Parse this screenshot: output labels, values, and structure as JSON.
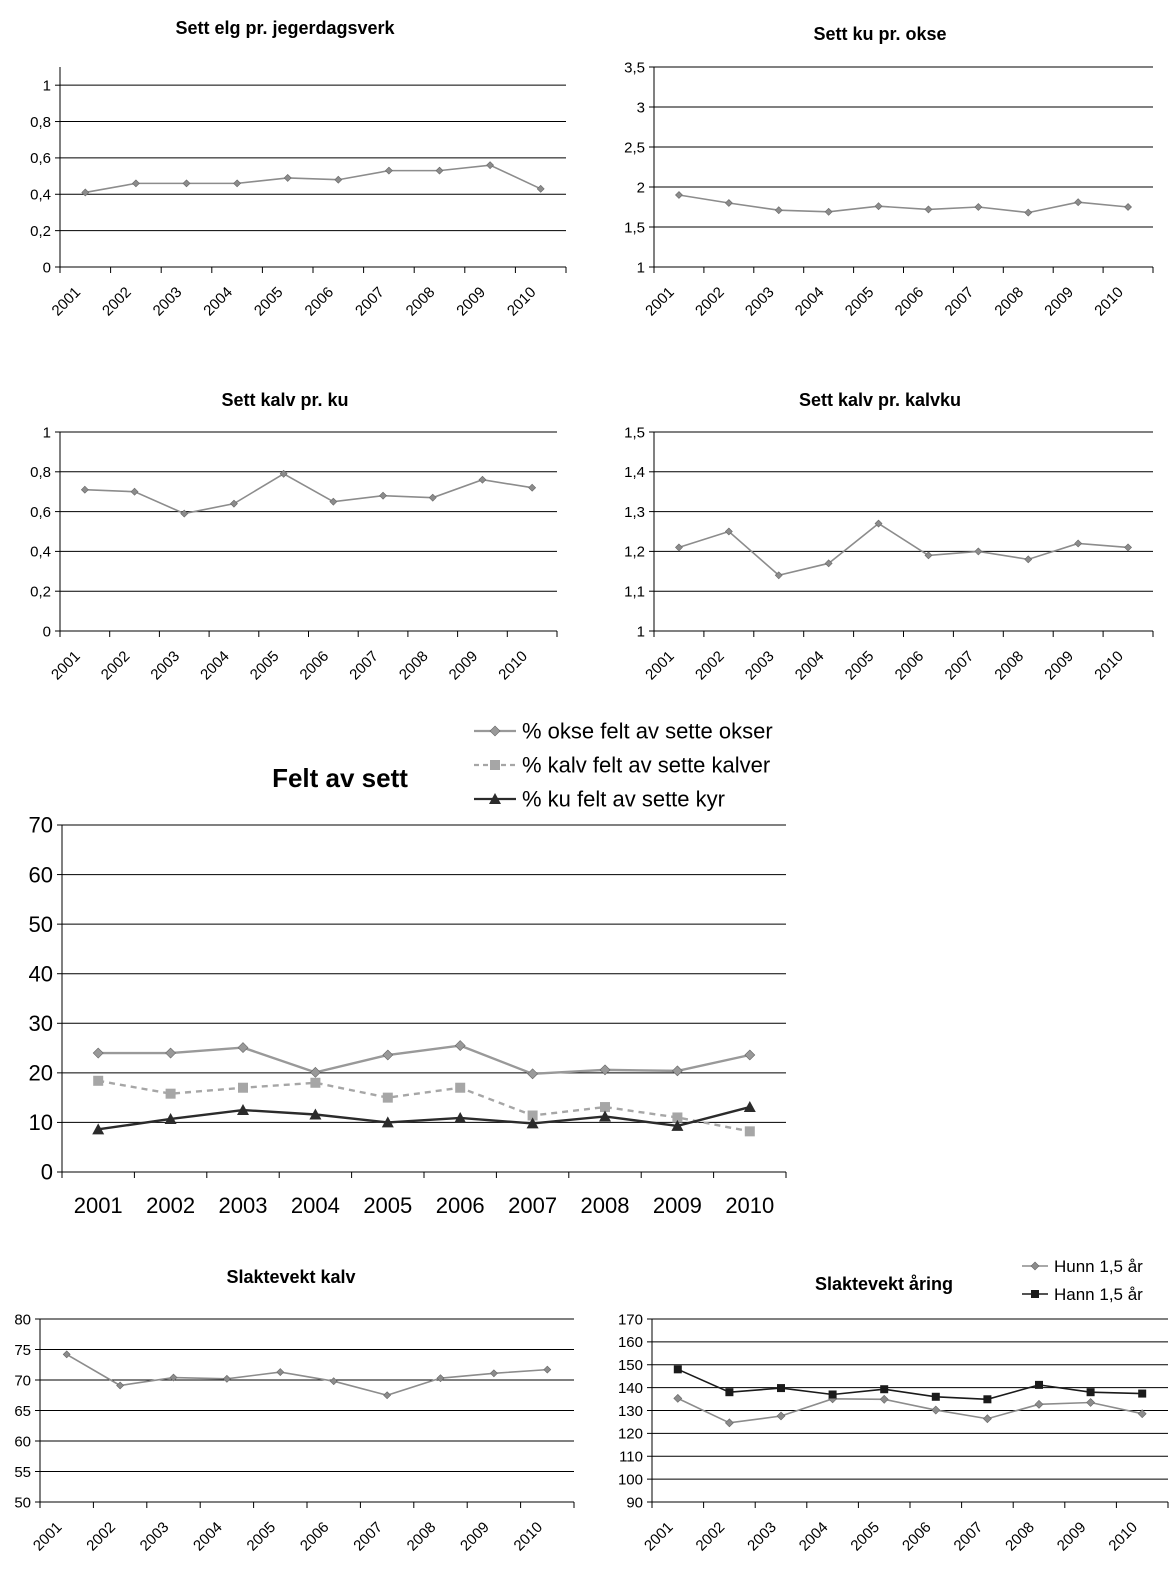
{
  "chart_data": [
    {
      "type": "line",
      "title": "Sett elg pr. jegerdagsverk",
      "categories": [
        "2001",
        "2002",
        "2003",
        "2004",
        "2005",
        "2006",
        "2007",
        "2008",
        "2009",
        "2010"
      ],
      "yticks": [
        "0",
        "0,2",
        "0,4",
        "0,6",
        "0,8",
        "1"
      ],
      "ylim": [
        0,
        1.1
      ],
      "grid": true,
      "series": [
        {
          "values": [
            0.41,
            0.46,
            0.46,
            0.46,
            0.49,
            0.48,
            0.53,
            0.53,
            0.56,
            0.43
          ],
          "color": "#8c8c8c",
          "marker": "diamond"
        }
      ]
    },
    {
      "type": "line",
      "title": "Sett ku pr. okse",
      "categories": [
        "2001",
        "2002",
        "2003",
        "2004",
        "2005",
        "2006",
        "2007",
        "2008",
        "2009",
        "2010"
      ],
      "yticks": [
        "1",
        "1,5",
        "2",
        "2,5",
        "3",
        "3,5"
      ],
      "ylim": [
        1,
        3.5
      ],
      "grid": true,
      "series": [
        {
          "values": [
            1.9,
            1.8,
            1.71,
            1.69,
            1.76,
            1.72,
            1.75,
            1.68,
            1.81,
            1.75
          ],
          "color": "#8c8c8c",
          "marker": "diamond"
        }
      ]
    },
    {
      "type": "line",
      "title": "Sett kalv pr. ku",
      "categories": [
        "2001",
        "2002",
        "2003",
        "2004",
        "2005",
        "2006",
        "2007",
        "2008",
        "2009",
        "2010"
      ],
      "yticks": [
        "0",
        "0,2",
        "0,4",
        "0,6",
        "0,8",
        "1"
      ],
      "ylim": [
        0,
        1
      ],
      "grid": true,
      "series": [
        {
          "values": [
            0.71,
            0.7,
            0.59,
            0.64,
            0.79,
            0.65,
            0.68,
            0.67,
            0.76,
            0.72
          ],
          "color": "#8c8c8c",
          "marker": "diamond"
        }
      ]
    },
    {
      "type": "line",
      "title": "Sett kalv pr. kalvku",
      "categories": [
        "2001",
        "2002",
        "2003",
        "2004",
        "2005",
        "2006",
        "2007",
        "2008",
        "2009",
        "2010"
      ],
      "yticks": [
        "1",
        "1,1",
        "1,2",
        "1,3",
        "1,4",
        "1,5"
      ],
      "ylim": [
        1,
        1.5
      ],
      "grid": true,
      "series": [
        {
          "values": [
            1.21,
            1.25,
            1.14,
            1.17,
            1.27,
            1.19,
            1.2,
            1.18,
            1.22,
            1.21
          ],
          "color": "#8c8c8c",
          "marker": "diamond"
        }
      ]
    },
    {
      "type": "line",
      "title": "Felt av sett",
      "categories": [
        "2001",
        "2002",
        "2003",
        "2004",
        "2005",
        "2006",
        "2007",
        "2008",
        "2009",
        "2010"
      ],
      "yticks": [
        "0",
        "10",
        "20",
        "30",
        "40",
        "50",
        "60",
        "70"
      ],
      "ylim": [
        0,
        70
      ],
      "grid": true,
      "legend_position": "top-right",
      "series": [
        {
          "name": "% okse felt av sette okser",
          "values": [
            24.0,
            24.0,
            25.1,
            20.1,
            23.6,
            25.5,
            19.8,
            20.6,
            20.4,
            23.6
          ],
          "color": "#999999",
          "marker": "diamond",
          "dash": "solid"
        },
        {
          "name": "% kalv felt av sette kalver",
          "values": [
            18.4,
            15.8,
            17.0,
            18.0,
            15.0,
            17.0,
            11.4,
            13.1,
            11.0,
            8.2
          ],
          "color": "#a6a6a6",
          "marker": "square",
          "dash": "dashed"
        },
        {
          "name": "% ku felt av sette kyr",
          "values": [
            8.6,
            10.7,
            12.5,
            11.6,
            10.0,
            10.9,
            9.8,
            11.2,
            9.3,
            13.1
          ],
          "color": "#2b2b2b",
          "marker": "triangle",
          "dash": "solid"
        }
      ]
    },
    {
      "type": "line",
      "title": "Slaktevekt kalv",
      "categories": [
        "2001",
        "2002",
        "2003",
        "2004",
        "2005",
        "2006",
        "2007",
        "2008",
        "2009",
        "2010"
      ],
      "yticks": [
        "50",
        "55",
        "60",
        "65",
        "70",
        "75",
        "80"
      ],
      "ylim": [
        50,
        80
      ],
      "grid": true,
      "series": [
        {
          "values": [
            74.2,
            69.1,
            70.4,
            70.2,
            71.3,
            69.8,
            67.5,
            70.3,
            71.1,
            71.7
          ],
          "color": "#8c8c8c",
          "marker": "diamond"
        }
      ]
    },
    {
      "type": "line",
      "title": "Slaktevekt åring",
      "categories": [
        "2001",
        "2002",
        "2003",
        "2004",
        "2005",
        "2006",
        "2007",
        "2008",
        "2009",
        "2010"
      ],
      "yticks": [
        "90",
        "100",
        "110",
        "120",
        "130",
        "140",
        "150",
        "160",
        "170"
      ],
      "ylim": [
        90,
        170
      ],
      "grid": true,
      "legend_position": "top-right",
      "series": [
        {
          "name": "Hunn 1,5 år",
          "values": [
            135.3,
            124.6,
            127.6,
            135.1,
            134.9,
            130.2,
            126.4,
            132.7,
            133.5,
            128.6
          ],
          "color": "#8c8c8c",
          "marker": "diamond"
        },
        {
          "name": "Hann 1,5 år",
          "values": [
            148.0,
            138.0,
            139.8,
            137.0,
            139.3,
            136.0,
            134.9,
            141.2,
            138.0,
            137.4
          ],
          "color": "#1a1a1a",
          "marker": "square"
        }
      ]
    }
  ]
}
